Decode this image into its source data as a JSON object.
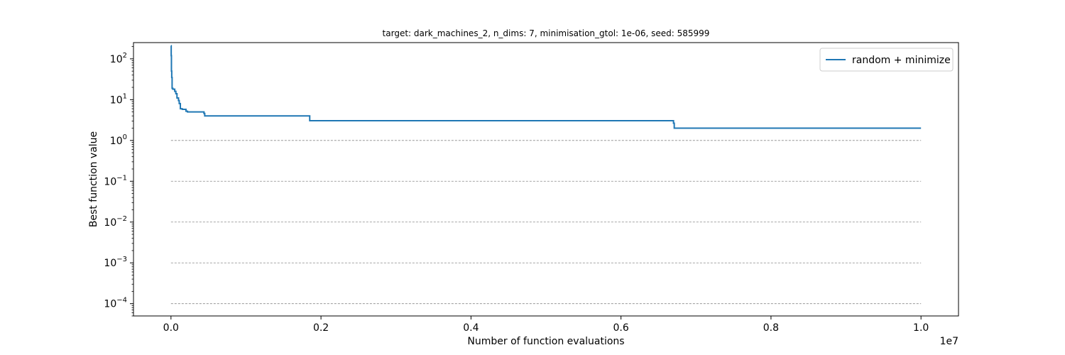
{
  "chart_data": {
    "type": "line",
    "title": "target: dark_machines_2, n_dims: 7, minimisation_gtol: 1e-06, seed: 585999",
    "xlabel": "Number of function evaluations",
    "ylabel": "Best function value",
    "x_offset_label": "1e7",
    "xlim": [
      -500000,
      10500000
    ],
    "ylim": [
      5e-05,
      250
    ],
    "y_scale": "log",
    "x_ticks": [
      {
        "value": 0,
        "label": "0.0"
      },
      {
        "value": 2000000,
        "label": "0.2"
      },
      {
        "value": 4000000,
        "label": "0.4"
      },
      {
        "value": 6000000,
        "label": "0.6"
      },
      {
        "value": 8000000,
        "label": "0.8"
      },
      {
        "value": 10000000,
        "label": "1.0"
      }
    ],
    "y_ticks": [
      {
        "value": 0.0001,
        "base": "10",
        "exp": "−4"
      },
      {
        "value": 0.001,
        "base": "10",
        "exp": "−3"
      },
      {
        "value": 0.01,
        "base": "10",
        "exp": "−2"
      },
      {
        "value": 0.1,
        "base": "10",
        "exp": "−1"
      },
      {
        "value": 1,
        "base": "10",
        "exp": "0"
      },
      {
        "value": 10,
        "base": "10",
        "exp": "1"
      },
      {
        "value": 100,
        "base": "10",
        "exp": "2"
      }
    ],
    "reference_lines": {
      "values": [
        0.0001,
        0.001,
        0.01,
        0.1,
        1
      ],
      "x_range": [
        0,
        10000000
      ],
      "style": "dashed",
      "color": "#888888"
    },
    "legend_position": "top-right",
    "series": [
      {
        "name": "random + minimize",
        "color": "#1f77b4",
        "step": true,
        "x": [
          0,
          3000,
          6000,
          10000,
          15000,
          25000,
          50000,
          65000,
          80000,
          100000,
          110000,
          125000,
          150000,
          200000,
          220000,
          440000,
          450000,
          1850000,
          6700000,
          6710000,
          10000000
        ],
        "y": [
          210,
          120,
          50,
          35,
          19,
          18,
          16,
          14,
          11,
          9.5,
          8,
          6,
          5.8,
          5.2,
          5.0,
          4.6,
          4.0,
          3.05,
          2.65,
          2.0,
          2.0
        ]
      }
    ]
  }
}
